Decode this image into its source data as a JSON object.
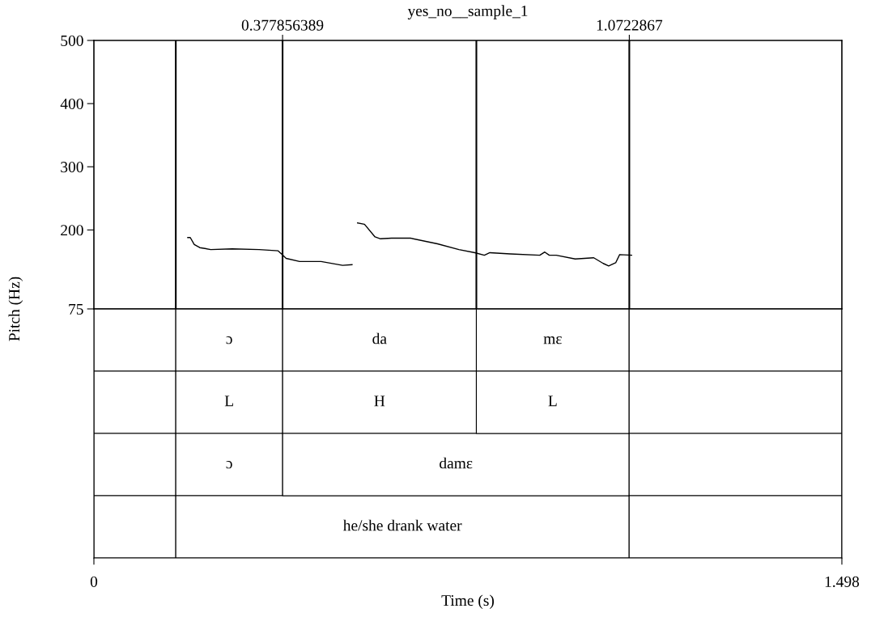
{
  "chart_data": [
    {
      "type": "line",
      "title": "yes_no__sample_1",
      "ylabel": "Pitch (Hz)",
      "xlim": [
        0,
        1.498
      ],
      "ylim": [
        75,
        500
      ],
      "yticks": [
        75,
        200,
        300,
        400,
        500
      ],
      "x2lim": [
        0,
        1.498
      ],
      "x2ticks": [
        0.377856389,
        1.0722867
      ],
      "tick_labels": "y",
      "marker": "none",
      "line_style": "solid",
      "series": [
        {
          "color": "#000000",
          "x": [
            0.188,
            0.193,
            0.201,
            0.212,
            0.234,
            0.277,
            0.331,
            0.369,
            0.377,
            0.385,
            0.412,
            0.455,
            0.498,
            0.517
          ],
          "values": [
            188,
            188,
            177,
            172,
            169,
            170,
            169,
            167,
            161,
            155,
            150,
            150,
            144,
            145
          ]
        },
        {
          "color": "#000000",
          "x": [
            0.528,
            0.542,
            0.563,
            0.574,
            0.596,
            0.634,
            0.688,
            0.731,
            0.763,
            0.782,
            0.793,
            0.834,
            0.893,
            0.903,
            0.912,
            0.926,
            0.964,
            1.001,
            1.02,
            1.031,
            1.045,
            1.053,
            1.077
          ],
          "values": [
            211,
            209,
            189,
            186,
            187,
            187,
            178,
            169,
            164,
            160,
            164,
            162,
            160,
            165,
            160,
            160,
            154,
            156,
            147,
            143,
            148,
            161,
            160
          ]
        }
      ],
      "ref_lines": [
        {
          "axis": "x",
          "value": 0.164
        },
        {
          "axis": "x",
          "value": 0.377856389
        },
        {
          "axis": "x",
          "value": 0.766
        },
        {
          "axis": "x",
          "value": 1.0722867
        }
      ]
    },
    {
      "type": "bar",
      "orientation": "horizontal",
      "stacked": true,
      "xlim": [
        0,
        1.498
      ],
      "xticks": [
        0,
        1.498
      ],
      "xlabel": "Time (s)",
      "tick_labels": "x",
      "categories": [
        null,
        null,
        null,
        null
      ],
      "series": [
        {
          "color": "#ffffff",
          "values": [
            0.164,
            0.164,
            0.164,
            0.164
          ],
          "value_labels": [
            null,
            null,
            null,
            null
          ]
        },
        {
          "color": "#ffffff",
          "values": [
            0.214,
            0.214,
            0.214,
            0.908
          ],
          "value_labels": [
            "ɔ",
            "L",
            "ɔ",
            "he/she drank water"
          ]
        },
        {
          "color": "#ffffff",
          "values": [
            0.388,
            0.388,
            0.694,
            null
          ],
          "value_labels": [
            "da",
            "H",
            "damɛ",
            null
          ]
        },
        {
          "color": "#ffffff",
          "values": [
            0.306,
            0.306,
            null,
            null
          ],
          "value_labels": [
            "mɛ",
            "L",
            null,
            null
          ]
        },
        {
          "color": "#ffffff",
          "values": [
            0.426,
            0.426,
            0.426,
            0.426
          ],
          "value_labels": [
            null,
            null,
            null,
            null
          ]
        }
      ]
    }
  ]
}
